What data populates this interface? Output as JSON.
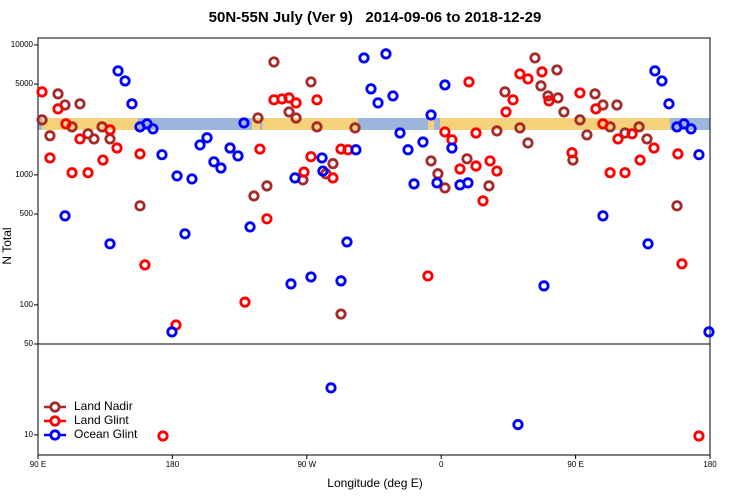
{
  "chart_data": {
    "type": "scatter",
    "title": "50N-55N July (Ver 9)   2014-09-06 to 2018-12-29",
    "xlabel": "Longitude (deg E)",
    "ylabel": "N Total",
    "xlim": [
      90,
      540
    ],
    "ylim": [
      7,
      11300
    ],
    "log_y": true,
    "legend": "bottom-left",
    "hline": 50,
    "xticks": [
      {
        "value": 90,
        "label": "90 E"
      },
      180,
      {
        "value": 270,
        "label": "90 W"
      },
      {
        "value": 360,
        "label": "0"
      },
      {
        "value": 450,
        "label": "90 E"
      },
      {
        "value": 540,
        "label": "180"
      }
    ],
    "yticks": [
      10,
      50,
      100,
      500,
      1000,
      5000,
      10000
    ],
    "series": [
      {
        "name": "Land Nadir",
        "color": "#a52a2a",
        "x": [
          92.7,
          98.0,
          103.4,
          108.1,
          112.8,
          118.1,
          123.5,
          127.5,
          132.9,
          138.2,
          158.3,
          234.6,
          237.3,
          243.3,
          248.0,
          258.1,
          262.8,
          267.4,
          272.8,
          276.8,
          282.8,
          287.5,
          292.9,
          302.3,
          353.2,
          357.8,
          362.5,
          377.3,
          392.0,
          397.3,
          402.7,
          412.7,
          418.1,
          422.8,
          426.8,
          431.5,
          437.5,
          438.2,
          442.2,
          448.2,
          452.9,
          457.6,
          463.0,
          468.3,
          473.1,
          477.7,
          483.1,
          492.5,
          497.8,
          517.9
        ],
        "values": [
          2650,
          2000,
          4200,
          3450,
          2340,
          3520,
          2070,
          1890,
          2340,
          1890,
          578,
          689,
          2740,
          823,
          7390,
          3050,
          2740,
          916,
          5190,
          2340,
          1020,
          1220,
          85,
          2300,
          1280,
          1020,
          794,
          1330,
          823,
          2180,
          4350,
          2300,
          1760,
          7940,
          4840,
          4050,
          6420,
          3910,
          3050,
          1300,
          2650,
          2030,
          4200,
          3450,
          2340,
          3450,
          2100,
          2340,
          1890,
          578
        ]
      },
      {
        "name": "Land Glint",
        "color": "#ff0000",
        "x": [
          92.7,
          98.0,
          103.4,
          108.7,
          112.8,
          118.1,
          123.5,
          133.5,
          138.2,
          142.9,
          158.3,
          161.6,
          173.7,
          182.4,
          228.6,
          238.6,
          243.3,
          248.0,
          253.4,
          258.1,
          262.8,
          268.1,
          272.8,
          276.8,
          287.5,
          292.9,
          297.6,
          351.1,
          362.5,
          367.2,
          372.6,
          378.6,
          383.3,
          383.3,
          388.0,
          392.7,
          397.3,
          403.4,
          408.1,
          412.7,
          418.1,
          427.5,
          432.2,
          447.6,
          452.9,
          463.6,
          468.3,
          473.1,
          478.4,
          483.1,
          487.8,
          493.2,
          502.5,
          518.5,
          521.2,
          532.6
        ],
        "values": [
          4350,
          1350,
          3220,
          2470,
          1040,
          1890,
          1040,
          1300,
          2220,
          1610,
          1450,
          203,
          9.8,
          70,
          105,
          1580,
          459,
          3780,
          3840,
          3910,
          3580,
          1050,
          1380,
          3780,
          948,
          1580,
          1560,
          167,
          2140,
          1860,
          1110,
          5190,
          2100,
          1170,
          631,
          1280,
          1070,
          3050,
          3780,
          5980,
          5470,
          6200,
          3710,
          1480,
          4270,
          3220,
          2470,
          1040,
          1890,
          1040,
          2070,
          1300,
          1610,
          1450,
          207,
          9.8
        ]
      },
      {
        "name": "Ocean Glint",
        "color": "#0000ff",
        "x": [
          108.1,
          138.2,
          143.6,
          148.3,
          152.9,
          158.3,
          163.0,
          167.0,
          173.0,
          179.7,
          183.1,
          188.4,
          193.1,
          198.5,
          203.2,
          207.8,
          212.5,
          218.6,
          223.9,
          227.9,
          232.0,
          259.4,
          262.1,
          272.8,
          280.2,
          280.8,
          286.2,
          292.9,
          296.9,
          302.9,
          308.3,
          313.0,
          317.7,
          323.0,
          327.7,
          332.4,
          337.8,
          341.8,
          347.8,
          353.2,
          357.2,
          362.5,
          367.2,
          372.6,
          377.9,
          411.4,
          428.8,
          468.3,
          498.5,
          503.1,
          507.8,
          512.5,
          517.9,
          522.6,
          527.3,
          532.6,
          539.3
        ],
        "values": [
          484,
          295,
          6310,
          5280,
          3520,
          2340,
          2470,
          2260,
          1430,
          62,
          982,
          352,
          931,
          1700,
          1930,
          1260,
          1130,
          1610,
          1400,
          2510,
          398,
          145,
          948,
          164,
          1350,
          1070,
          23,
          153,
          305,
          1560,
          7940,
          4590,
          3580,
          8530,
          4050,
          2100,
          1560,
          853,
          1790,
          2890,
          868,
          4920,
          1610,
          838,
          868,
          12,
          140,
          484,
          295,
          6310,
          5280,
          3520,
          2340,
          2470,
          2260,
          1430,
          62
        ]
      }
    ]
  }
}
